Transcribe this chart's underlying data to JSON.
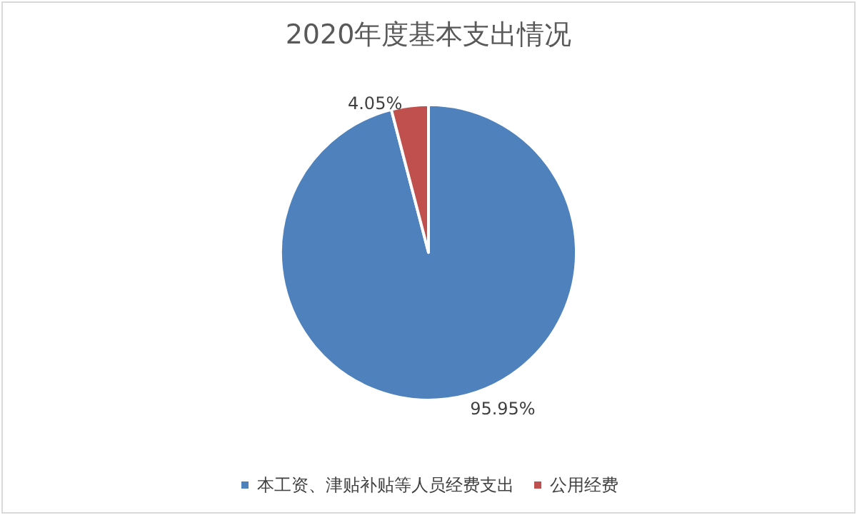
{
  "chart_data": {
    "type": "pie",
    "title": "2020年度基本支出情况",
    "categories": [
      "本工资、津贴补贴等人员经费支出",
      "公用经费"
    ],
    "values": [
      95.95,
      4.05
    ],
    "value_labels": [
      "95.95%",
      "4.05%"
    ],
    "colors": [
      "#4f81bd",
      "#c0504d"
    ],
    "legend": "bottom"
  }
}
